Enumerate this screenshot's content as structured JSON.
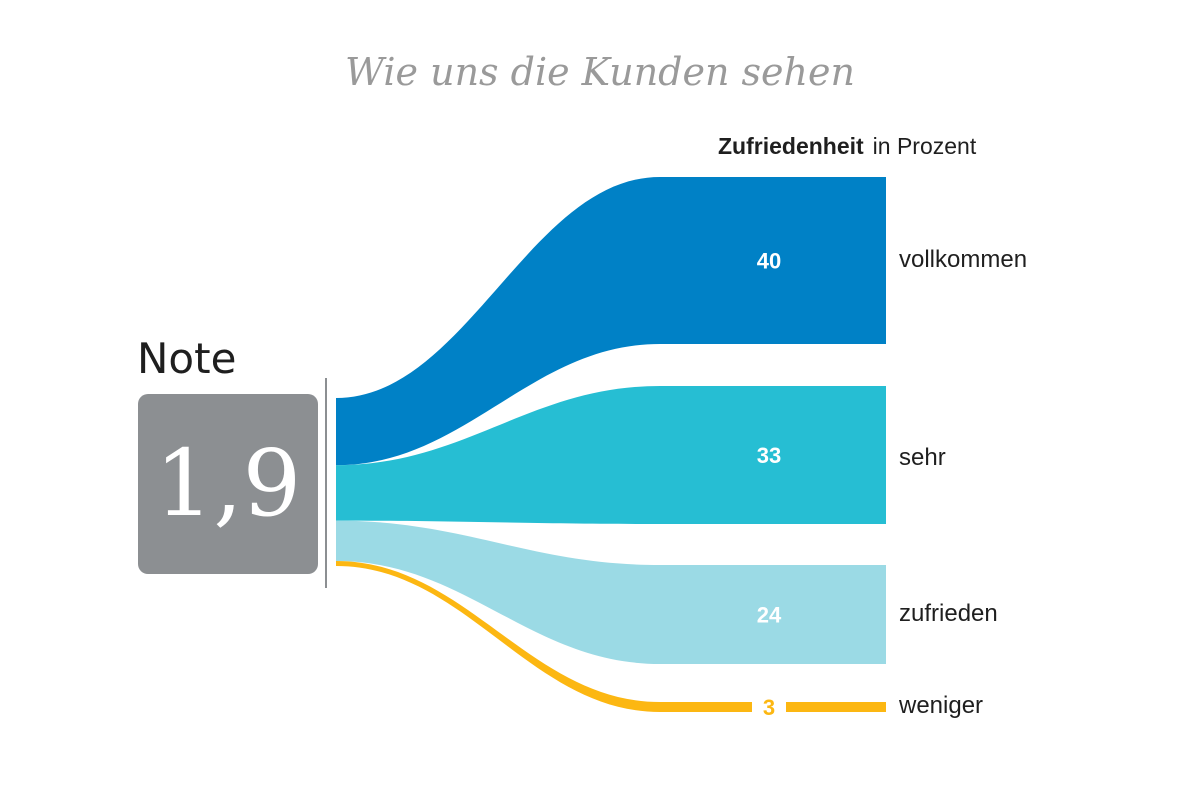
{
  "chart_data": {
    "type": "sankey",
    "title": "Wie uns die Kunden sehen",
    "header_bold": "Zufriedenheit",
    "header_unit": "in Prozent",
    "source_label": "Note",
    "source_value": "1,9",
    "categories": [
      "vollkommen",
      "sehr",
      "zufrieden",
      "weniger"
    ],
    "values": [
      40,
      33,
      24,
      3
    ],
    "value_labels": [
      "40",
      "33",
      "24",
      "3"
    ],
    "colors": [
      "#0081c6",
      "#00b3cb",
      "#8ad3e1",
      "#fcb712"
    ]
  },
  "colors": {
    "grade_box": "#8c8f92",
    "title": "#9a9a9a",
    "label_text": "#ffffff"
  }
}
